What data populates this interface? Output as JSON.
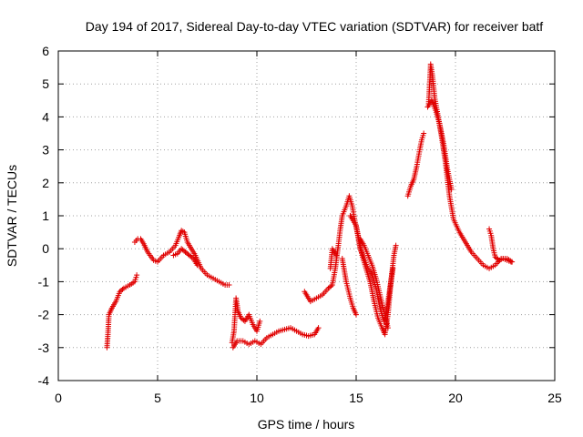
{
  "colors": {
    "series": "#e00000",
    "grid": "#a0a0a0",
    "frame": "#000000",
    "background": "#ffffff"
  },
  "chart_data": {
    "type": "scatter",
    "title": "Day 194 of 2017, Sidereal Day-to-day VTEC variation (SDTVAR) for receiver batf",
    "xlabel": "GPS time / hours",
    "ylabel": "SDTVAR / TECUs",
    "xlim": [
      0,
      25
    ],
    "ylim": [
      -4,
      6
    ],
    "xticks": [
      0,
      5,
      10,
      15,
      20,
      25
    ],
    "yticks": [
      -4,
      -3,
      -2,
      -1,
      0,
      1,
      2,
      3,
      4,
      5,
      6
    ],
    "grid": true,
    "marker": "+",
    "series": [
      {
        "name": "SDTVAR",
        "segments": [
          [
            [
              2.45,
              -3.0
            ],
            [
              2.5,
              -2.6
            ],
            [
              2.55,
              -2.0
            ],
            [
              2.7,
              -1.8
            ],
            [
              2.9,
              -1.6
            ],
            [
              3.1,
              -1.3
            ],
            [
              3.3,
              -1.2
            ],
            [
              3.6,
              -1.1
            ],
            [
              3.85,
              -1.0
            ],
            [
              3.95,
              -0.8
            ]
          ],
          [
            [
              3.85,
              0.2
            ],
            [
              4.0,
              0.3
            ],
            [
              4.15,
              0.3
            ],
            [
              4.3,
              0.15
            ],
            [
              4.5,
              -0.1
            ],
            [
              4.8,
              -0.35
            ],
            [
              5.0,
              -0.4
            ],
            [
              5.3,
              -0.2
            ],
            [
              5.6,
              -0.1
            ],
            [
              5.9,
              0.1
            ],
            [
              6.1,
              0.4
            ],
            [
              6.2,
              0.55
            ],
            [
              6.35,
              0.5
            ],
            [
              6.5,
              0.2
            ],
            [
              6.7,
              0.0
            ],
            [
              6.9,
              -0.2
            ],
            [
              7.2,
              -0.6
            ],
            [
              7.5,
              -0.8
            ],
            [
              7.8,
              -0.9
            ],
            [
              8.1,
              -1.0
            ],
            [
              8.4,
              -1.1
            ],
            [
              8.6,
              -1.1
            ]
          ],
          [
            [
              5.8,
              -0.2
            ],
            [
              6.0,
              -0.15
            ],
            [
              6.2,
              0.0
            ],
            [
              6.4,
              -0.1
            ],
            [
              6.6,
              -0.2
            ],
            [
              6.8,
              -0.3
            ],
            [
              7.0,
              -0.5
            ]
          ],
          [
            [
              8.75,
              -2.85
            ],
            [
              8.85,
              -2.5
            ],
            [
              8.95,
              -1.5
            ],
            [
              9.05,
              -1.9
            ],
            [
              9.2,
              -2.1
            ],
            [
              9.4,
              -2.2
            ],
            [
              9.6,
              -2.0
            ],
            [
              9.8,
              -2.3
            ],
            [
              10.0,
              -2.5
            ],
            [
              10.15,
              -2.2
            ]
          ],
          [
            [
              8.8,
              -3.0
            ],
            [
              9.0,
              -2.8
            ],
            [
              9.3,
              -2.8
            ],
            [
              9.6,
              -2.9
            ],
            [
              9.9,
              -2.8
            ],
            [
              10.2,
              -2.9
            ],
            [
              10.5,
              -2.7
            ],
            [
              10.8,
              -2.6
            ],
            [
              11.1,
              -2.5
            ],
            [
              11.4,
              -2.45
            ],
            [
              11.7,
              -2.4
            ],
            [
              12.0,
              -2.5
            ],
            [
              12.3,
              -2.6
            ],
            [
              12.6,
              -2.65
            ],
            [
              12.9,
              -2.6
            ],
            [
              13.1,
              -2.4
            ]
          ],
          [
            [
              12.4,
              -1.3
            ],
            [
              12.7,
              -1.6
            ],
            [
              13.0,
              -1.5
            ],
            [
              13.3,
              -1.4
            ],
            [
              13.6,
              -1.2
            ],
            [
              13.8,
              -1.1
            ],
            [
              13.95,
              -0.6
            ],
            [
              14.1,
              0.1
            ],
            [
              14.2,
              0.6
            ],
            [
              14.3,
              1.0
            ],
            [
              14.5,
              1.3
            ],
            [
              14.65,
              1.6
            ],
            [
              14.8,
              1.3
            ],
            [
              14.95,
              0.8
            ],
            [
              15.1,
              0.4
            ],
            [
              15.3,
              -0.2
            ],
            [
              15.5,
              -0.6
            ],
            [
              15.7,
              -1.0
            ],
            [
              15.9,
              -1.6
            ],
            [
              16.1,
              -2.1
            ],
            [
              16.3,
              -2.4
            ],
            [
              16.45,
              -2.6
            ],
            [
              16.6,
              -2.0
            ],
            [
              16.75,
              -1.0
            ],
            [
              16.9,
              -0.2
            ],
            [
              17.0,
              0.1
            ]
          ],
          [
            [
              13.7,
              -0.6
            ],
            [
              13.8,
              0.0
            ],
            [
              14.0,
              -0.2
            ]
          ],
          [
            [
              14.3,
              -0.3
            ],
            [
              14.5,
              -1.0
            ],
            [
              14.7,
              -1.5
            ],
            [
              14.85,
              -1.8
            ],
            [
              15.0,
              -2.0
            ]
          ],
          [
            [
              14.7,
              1.0
            ],
            [
              15.0,
              0.7
            ],
            [
              15.2,
              0.0
            ],
            [
              15.4,
              -0.3
            ],
            [
              15.6,
              -0.6
            ],
            [
              15.8,
              -0.8
            ],
            [
              16.0,
              -1.2
            ],
            [
              16.2,
              -1.8
            ],
            [
              16.4,
              -2.2
            ],
            [
              16.55,
              -1.8
            ],
            [
              16.7,
              -1.2
            ],
            [
              16.85,
              -0.6
            ]
          ],
          [
            [
              15.2,
              0.3
            ],
            [
              15.4,
              0.1
            ],
            [
              15.6,
              -0.2
            ],
            [
              15.8,
              -0.5
            ],
            [
              16.0,
              -0.9
            ],
            [
              16.2,
              -1.4
            ],
            [
              16.4,
              -1.9
            ],
            [
              16.6,
              -2.4
            ]
          ],
          [
            [
              17.6,
              1.6
            ],
            [
              17.75,
              1.9
            ],
            [
              17.9,
              2.1
            ],
            [
              18.05,
              2.5
            ],
            [
              18.2,
              3.0
            ],
            [
              18.3,
              3.3
            ],
            [
              18.4,
              3.5
            ]
          ],
          [
            [
              18.65,
              4.4
            ],
            [
              18.7,
              5.0
            ],
            [
              18.75,
              5.6
            ],
            [
              18.85,
              5.2
            ],
            [
              18.95,
              4.6
            ],
            [
              19.1,
              4.1
            ],
            [
              19.3,
              3.4
            ],
            [
              19.5,
              2.6
            ],
            [
              19.7,
              1.6
            ],
            [
              19.9,
              0.9
            ],
            [
              20.2,
              0.5
            ],
            [
              20.5,
              0.2
            ],
            [
              20.8,
              -0.1
            ],
            [
              21.1,
              -0.3
            ],
            [
              21.4,
              -0.5
            ],
            [
              21.7,
              -0.6
            ],
            [
              22.0,
              -0.5
            ],
            [
              22.3,
              -0.3
            ],
            [
              22.6,
              -0.3
            ],
            [
              22.85,
              -0.4
            ]
          ],
          [
            [
              18.6,
              4.3
            ],
            [
              18.8,
              4.5
            ],
            [
              19.0,
              4.2
            ],
            [
              19.2,
              3.8
            ],
            [
              19.4,
              3.2
            ],
            [
              19.6,
              2.4
            ],
            [
              19.8,
              1.8
            ]
          ],
          [
            [
              21.7,
              0.6
            ],
            [
              21.8,
              0.4
            ],
            [
              21.9,
              0.0
            ],
            [
              22.0,
              -0.25
            ],
            [
              22.2,
              -0.35
            ],
            [
              22.4,
              -0.3
            ],
            [
              22.6,
              -0.35
            ],
            [
              22.8,
              -0.4
            ]
          ]
        ]
      }
    ]
  }
}
